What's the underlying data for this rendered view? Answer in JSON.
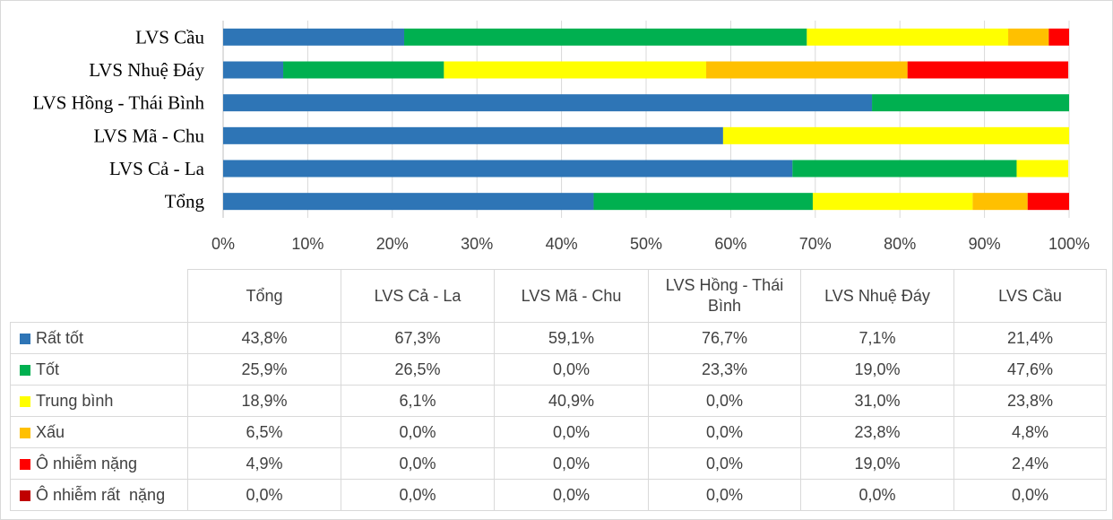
{
  "chart_data": {
    "type": "bar",
    "orientation": "horizontal",
    "stacked": "percent",
    "categories": [
      "LVS Cầu",
      "LVS Nhuệ Đáy",
      "LVS Hồng - Thái Bình",
      "LVS Mã - Chu",
      "LVS Cả - La",
      "Tổng"
    ],
    "series": [
      {
        "name": "Rất tốt",
        "color": "#2e75b6",
        "values": [
          21.4,
          7.1,
          76.7,
          59.1,
          67.3,
          43.8
        ]
      },
      {
        "name": "Tốt",
        "color": "#00b050",
        "values": [
          47.6,
          19.0,
          23.3,
          0.0,
          26.5,
          25.9
        ]
      },
      {
        "name": "Trung bình",
        "color": "#ffff00",
        "values": [
          23.8,
          31.0,
          0.0,
          40.9,
          6.1,
          18.9
        ]
      },
      {
        "name": "Xấu",
        "color": "#ffc000",
        "values": [
          4.8,
          23.8,
          0.0,
          0.0,
          0.0,
          6.5
        ]
      },
      {
        "name": "Ô nhiễm nặng",
        "color": "#ff0000",
        "values": [
          2.4,
          19.0,
          0.0,
          0.0,
          0.0,
          4.9
        ]
      },
      {
        "name": "Ô nhiễm rất  nặng",
        "color": "#c00000",
        "values": [
          0.0,
          0.0,
          0.0,
          0.0,
          0.0,
          0.0
        ]
      }
    ],
    "xlim": [
      0,
      100
    ],
    "x_ticks": [
      "0%",
      "10%",
      "20%",
      "30%",
      "40%",
      "50%",
      "60%",
      "70%",
      "80%",
      "90%",
      "100%"
    ],
    "grid": "vertical",
    "legend": "data table below chart"
  },
  "table": {
    "columns": [
      "Tổng",
      "LVS Cả - La",
      "LVS Mã - Chu",
      "LVS Hồng - Thái Bình",
      "LVS Nhuệ Đáy",
      "LVS Cầu"
    ],
    "rows": [
      {
        "label": "Rất tốt",
        "values": [
          "43,8%",
          "67,3%",
          "59,1%",
          "76,7%",
          "7,1%",
          "21,4%"
        ]
      },
      {
        "label": "Tốt",
        "values": [
          "25,9%",
          "26,5%",
          "0,0%",
          "23,3%",
          "19,0%",
          "47,6%"
        ]
      },
      {
        "label": "Trung bình",
        "values": [
          "18,9%",
          "6,1%",
          "40,9%",
          "0,0%",
          "31,0%",
          "23,8%"
        ]
      },
      {
        "label": "Xấu",
        "values": [
          "6,5%",
          "0,0%",
          "0,0%",
          "0,0%",
          "23,8%",
          "4,8%"
        ]
      },
      {
        "label": "Ô nhiễm nặng",
        "values": [
          "4,9%",
          "0,0%",
          "0,0%",
          "0,0%",
          "19,0%",
          "2,4%"
        ]
      },
      {
        "label": "Ô nhiễm rất  nặng",
        "values": [
          "0,0%",
          "0,0%",
          "0,0%",
          "0,0%",
          "0,0%",
          "0,0%"
        ]
      }
    ]
  }
}
